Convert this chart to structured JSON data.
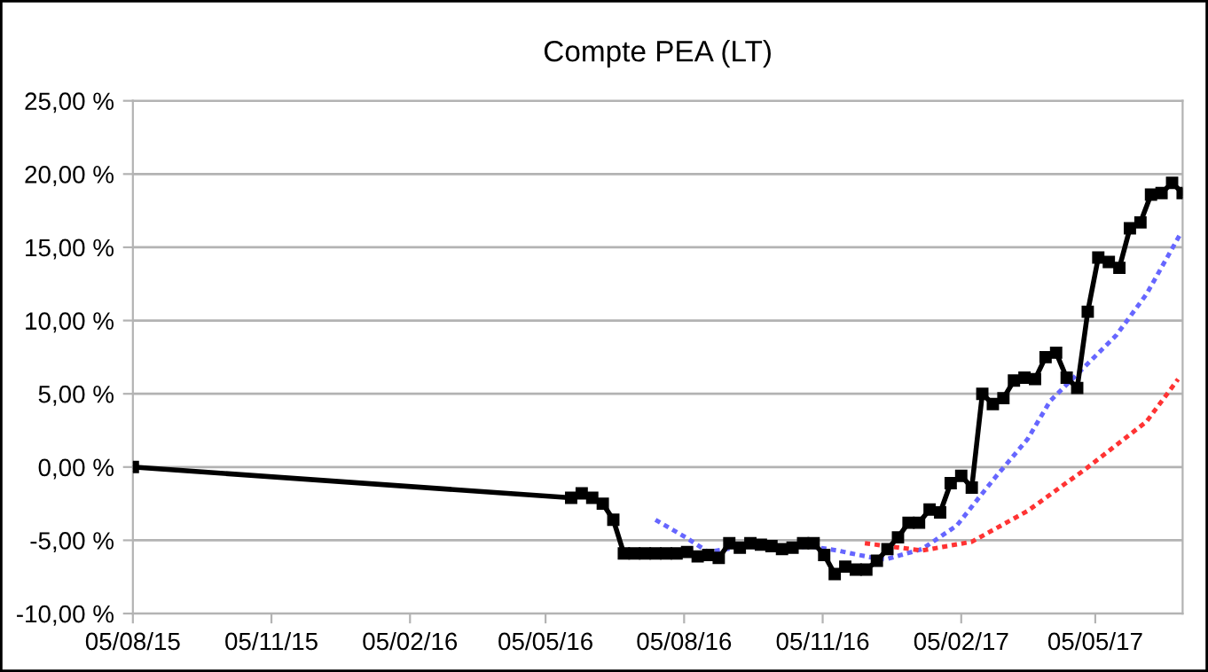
{
  "chart_data": {
    "type": "line",
    "title": "Compte PEA (LT)",
    "xlim": [
      "2015-08-05",
      "2017-07-02"
    ],
    "xticks": [
      {
        "value": "2015-08-05",
        "label": "05/08/15"
      },
      {
        "value": "2015-11-05",
        "label": "05/11/15"
      },
      {
        "value": "2016-02-05",
        "label": "05/02/16"
      },
      {
        "value": "2016-05-05",
        "label": "05/05/16"
      },
      {
        "value": "2016-08-05",
        "label": "05/08/16"
      },
      {
        "value": "2016-11-05",
        "label": "05/11/16"
      },
      {
        "value": "2017-02-05",
        "label": "05/02/17"
      },
      {
        "value": "2017-05-05",
        "label": "05/05/17"
      }
    ],
    "ylim": [
      -10,
      25
    ],
    "yticks": [
      {
        "value": -10,
        "label": "-10,00 %"
      },
      {
        "value": -5,
        "label": "-5,00 %"
      },
      {
        "value": 0,
        "label": "0,00 %"
      },
      {
        "value": 5,
        "label": "5,00 %"
      },
      {
        "value": 10,
        "label": "10,00 %"
      },
      {
        "value": 15,
        "label": "15,00 %"
      },
      {
        "value": 20,
        "label": "20,00 %"
      },
      {
        "value": 25,
        "label": "25,00 %"
      }
    ],
    "grid": "y",
    "series": [
      {
        "color": "#000000",
        "marker": "square",
        "line_style": "solid",
        "x": [
          "2015-08-05",
          "2016-05-22",
          "2016-05-29",
          "2016-06-05",
          "2016-06-12",
          "2016-06-19",
          "2016-06-26",
          "2016-07-03",
          "2016-07-10",
          "2016-07-17",
          "2016-07-24",
          "2016-07-31",
          "2016-08-07",
          "2016-08-14",
          "2016-08-21",
          "2016-08-28",
          "2016-09-04",
          "2016-09-11",
          "2016-09-18",
          "2016-09-25",
          "2016-10-02",
          "2016-10-09",
          "2016-10-16",
          "2016-10-23",
          "2016-10-30",
          "2016-11-06",
          "2016-11-13",
          "2016-11-20",
          "2016-11-27",
          "2016-12-04",
          "2016-12-11",
          "2016-12-18",
          "2016-12-25",
          "2017-01-01",
          "2017-01-08",
          "2017-01-15",
          "2017-01-22",
          "2017-01-29",
          "2017-02-05",
          "2017-02-12",
          "2017-02-19",
          "2017-02-26",
          "2017-03-05",
          "2017-03-12",
          "2017-03-19",
          "2017-03-26",
          "2017-04-02",
          "2017-04-09",
          "2017-04-16",
          "2017-04-23",
          "2017-04-30",
          "2017-05-07",
          "2017-05-14",
          "2017-05-21",
          "2017-05-28",
          "2017-06-04",
          "2017-06-11",
          "2017-06-18",
          "2017-06-25",
          "2017-07-02"
        ],
        "values": [
          0,
          -2.1,
          -1.8,
          -2.1,
          -2.5,
          -3.6,
          -5.9,
          -5.9,
          -5.9,
          -5.9,
          -5.9,
          -5.9,
          -5.8,
          -6.1,
          -6.0,
          -6.2,
          -5.2,
          -5.5,
          -5.2,
          -5.3,
          -5.4,
          -5.6,
          -5.5,
          -5.2,
          -5.2,
          -6.0,
          -7.3,
          -6.8,
          -7.0,
          -7.0,
          -6.4,
          -5.6,
          -4.8,
          -3.8,
          -3.8,
          -2.9,
          -3.1,
          -1.1,
          -0.6,
          -1.4,
          5.0,
          4.3,
          4.7,
          5.9,
          6.1,
          6.0,
          7.5,
          7.8,
          6.1,
          5.4,
          10.6,
          14.3,
          14.0,
          13.6,
          16.3,
          16.7,
          18.6,
          18.7,
          19.4,
          18.7
        ]
      },
      {
        "color": "#6666ff",
        "marker": "none",
        "line_style": "dotted",
        "x": [
          "2016-07-17",
          "2016-08-06",
          "2016-08-21",
          "2016-09-14",
          "2016-10-11",
          "2016-10-27",
          "2016-11-15",
          "2016-11-24",
          "2016-12-09",
          "2016-12-17",
          "2017-01-10",
          "2017-02-02",
          "2017-02-26",
          "2017-03-21",
          "2017-04-05",
          "2017-05-19",
          "2017-06-08",
          "2017-07-01"
        ],
        "values": [
          -3.6,
          -4.8,
          -5.8,
          -5.4,
          -5.6,
          -5.4,
          -5.7,
          -5.9,
          -6.2,
          -6.3,
          -5.6,
          -4.0,
          -0.9,
          1.9,
          4.5,
          9.0,
          11.8,
          16.0
        ]
      },
      {
        "color": "#ff3333",
        "marker": "none",
        "line_style": "dotted",
        "x": [
          "2016-12-03",
          "2017-01-10",
          "2017-02-12",
          "2017-03-21",
          "2017-04-29",
          "2017-06-08",
          "2017-06-29"
        ],
        "values": [
          -5.2,
          -5.7,
          -5.1,
          -3.0,
          -0.1,
          3.1,
          6.0
        ]
      }
    ]
  }
}
